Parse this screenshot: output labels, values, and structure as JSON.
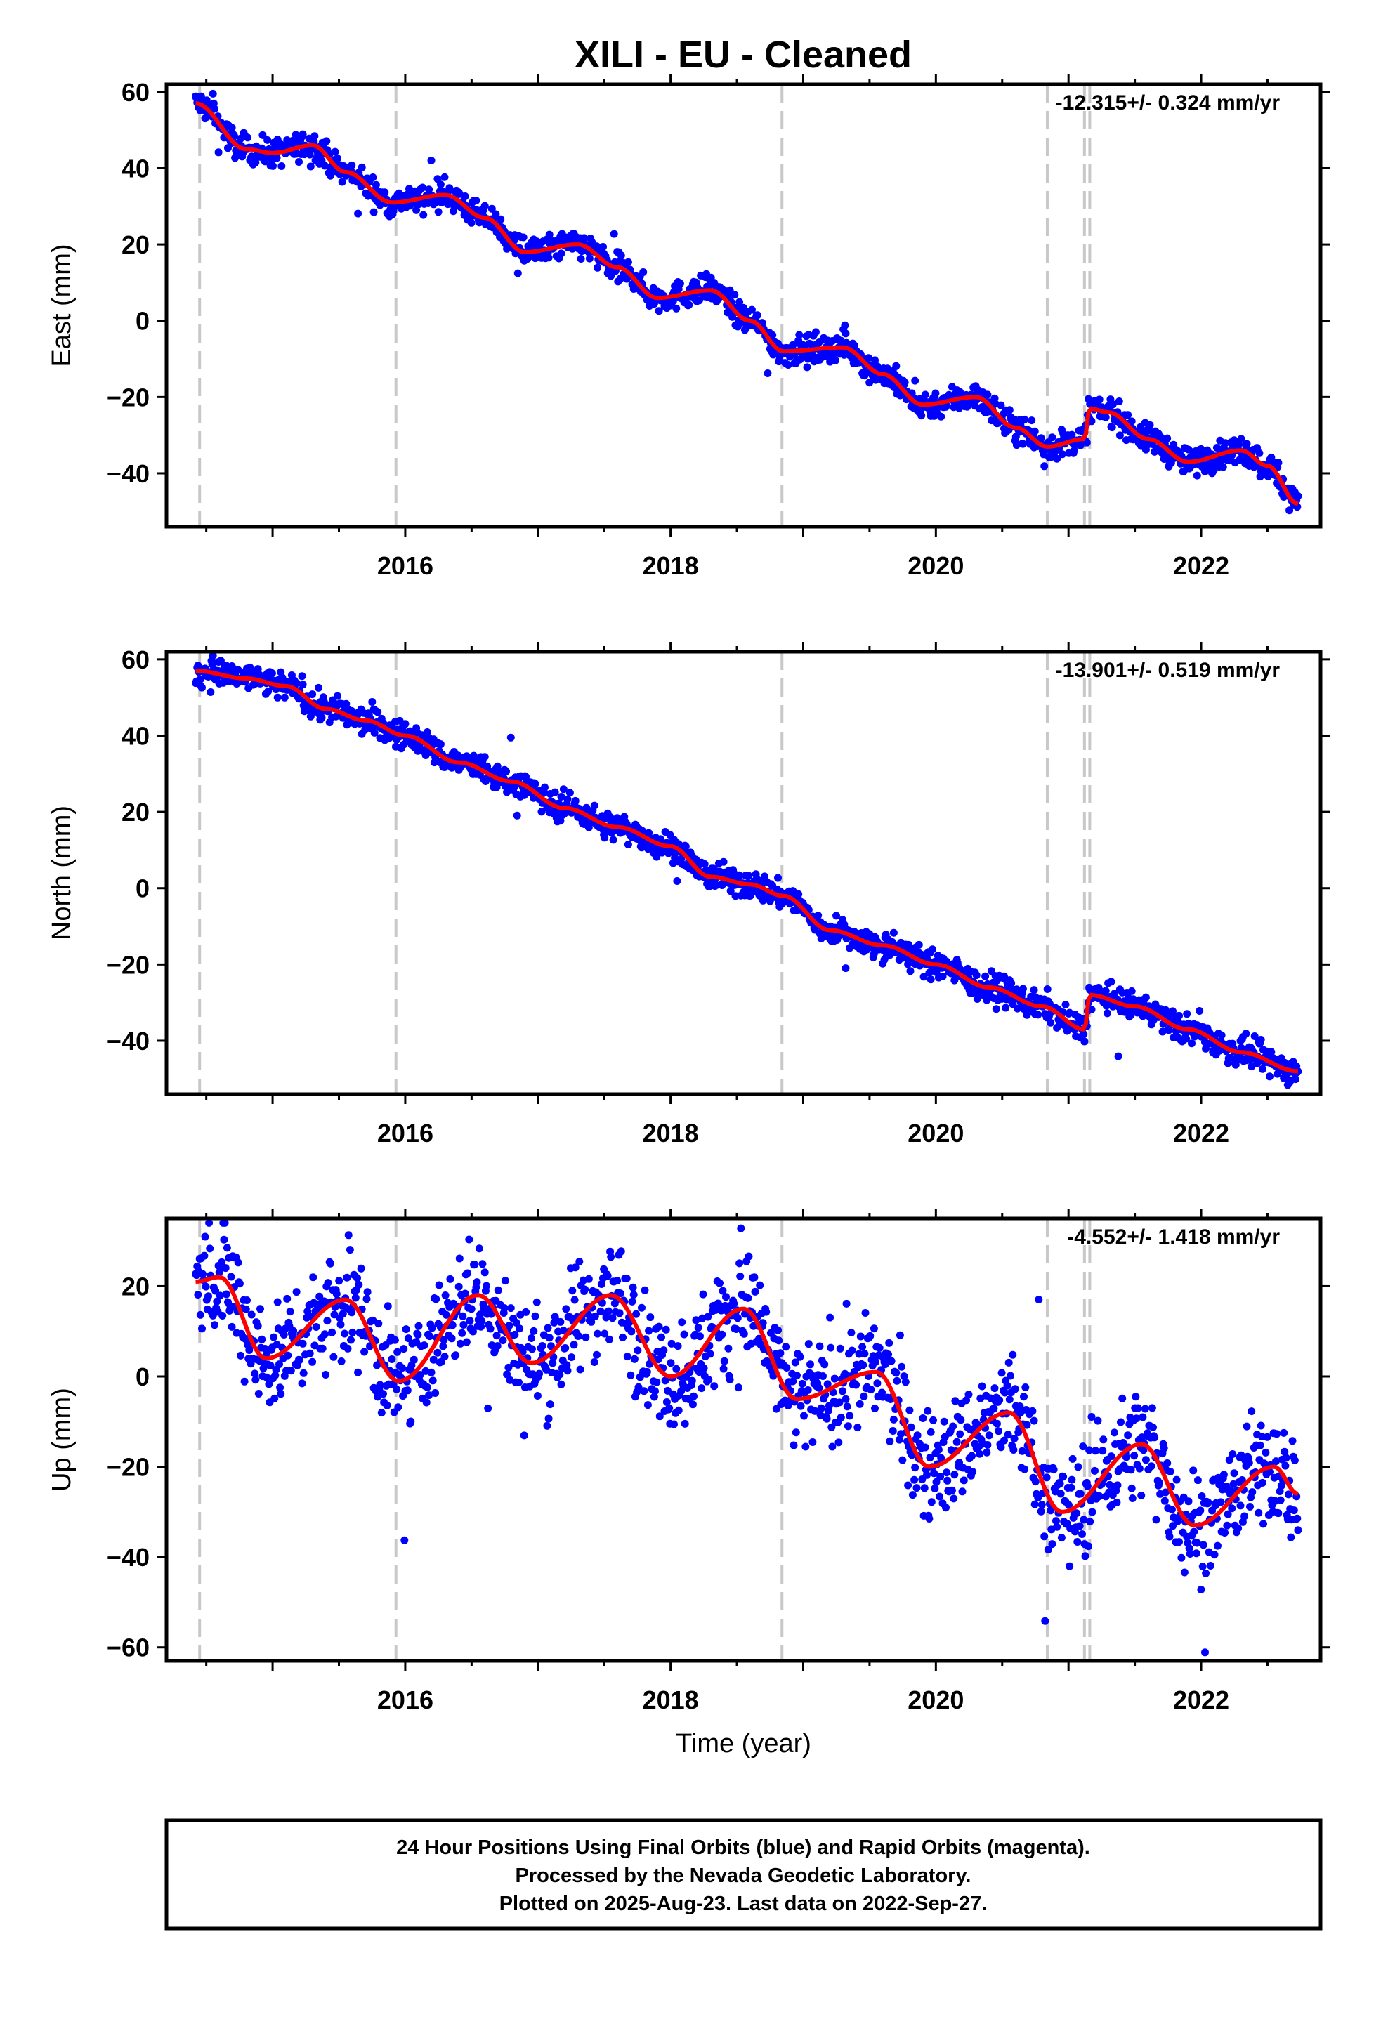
{
  "title": "XILI  - EU - Cleaned",
  "footer": {
    "line1": "24 Hour Positions Using Final Orbits (blue) and Rapid Orbits (magenta).",
    "line2": "Processed by the Nevada Geodetic Laboratory.",
    "line3": "Plotted on 2025-Aug-23. Last data on 2022-Sep-27."
  },
  "colors": {
    "points": "#0000ff",
    "fit": "#ff0000",
    "offsets": "#c8c8c8",
    "frame": "#000000"
  },
  "chart_data": [
    {
      "type": "scatter",
      "component": "east",
      "ylabel": "East (mm)",
      "xlabel": "",
      "rate_text": "-12.315+/- 0.324 mm/yr",
      "xlim": [
        2014.2,
        2022.9
      ],
      "ylim": [
        -54,
        62
      ],
      "xticks": [
        2016,
        2018,
        2020,
        2022
      ],
      "yticks": [
        -40,
        -20,
        0,
        20,
        40,
        60
      ],
      "offsets": [
        2014.45,
        2015.93,
        2018.84,
        2020.84,
        2021.12,
        2021.16
      ],
      "grid": false,
      "trend": {
        "x": [
          2014.42,
          2014.8,
          2015.0,
          2015.3,
          2015.55,
          2015.9,
          2016.3,
          2016.6,
          2016.9,
          2017.3,
          2017.6,
          2017.9,
          2018.3,
          2018.6,
          2018.85,
          2019.3,
          2019.6,
          2019.9,
          2020.3,
          2020.6,
          2020.84,
          2021.12,
          2021.16,
          2021.3,
          2021.6,
          2021.9,
          2022.3,
          2022.5,
          2022.73
        ],
        "y": [
          57,
          45,
          44,
          46,
          39,
          31,
          33,
          27,
          18,
          20,
          14,
          6,
          8,
          0,
          -8,
          -7,
          -14,
          -22,
          -20,
          -28,
          -33,
          -31,
          -23,
          -24,
          -31,
          -37,
          -34,
          -38,
          -48
        ]
      },
      "noise": 1.8
    },
    {
      "type": "scatter",
      "component": "north",
      "ylabel": "North (mm)",
      "xlabel": "",
      "rate_text": "-13.901+/- 0.519 mm/yr",
      "xlim": [
        2014.2,
        2022.9
      ],
      "ylim": [
        -54,
        62
      ],
      "xticks": [
        2016,
        2018,
        2020,
        2022
      ],
      "yticks": [
        -40,
        -20,
        0,
        20,
        40,
        60
      ],
      "offsets": [
        2014.45,
        2015.93,
        2018.84,
        2020.84,
        2021.12,
        2021.16
      ],
      "grid": false,
      "trend": {
        "x": [
          2014.42,
          2014.8,
          2015.1,
          2015.4,
          2015.7,
          2016.0,
          2016.4,
          2016.8,
          2017.2,
          2017.6,
          2018.0,
          2018.3,
          2018.6,
          2018.85,
          2019.2,
          2019.6,
          2020.0,
          2020.4,
          2020.8,
          2021.12,
          2021.16,
          2021.5,
          2021.9,
          2022.3,
          2022.73
        ],
        "y": [
          57,
          55,
          53,
          47,
          44,
          40,
          33,
          28,
          21,
          16,
          11,
          3,
          1,
          -2,
          -11,
          -15,
          -20,
          -26,
          -31,
          -37,
          -28,
          -31,
          -37,
          -43,
          -48
        ]
      },
      "noise": 1.8
    },
    {
      "type": "scatter",
      "component": "up",
      "ylabel": "Up (mm)",
      "xlabel": "Time (year)",
      "rate_text": "-4.552+/- 1.418 mm/yr",
      "xlim": [
        2014.2,
        2022.9
      ],
      "ylim": [
        -63,
        35
      ],
      "xticks": [
        2016,
        2018,
        2020,
        2022
      ],
      "yticks": [
        -60,
        -40,
        -20,
        0,
        20
      ],
      "offsets": [
        2014.45,
        2015.93,
        2018.84,
        2020.84,
        2021.12,
        2021.16
      ],
      "grid": false,
      "trend": {
        "x": [
          2014.42,
          2014.6,
          2014.95,
          2015.55,
          2015.95,
          2016.55,
          2016.95,
          2017.55,
          2018.0,
          2018.55,
          2018.95,
          2019.55,
          2019.95,
          2020.55,
          2020.95,
          2021.55,
          2021.95,
          2022.55,
          2022.73
        ],
        "y": [
          21,
          22,
          4,
          17,
          -1,
          18,
          3,
          18,
          0,
          15,
          -5,
          1,
          -20,
          -8,
          -30,
          -15,
          -33,
          -20,
          -26
        ]
      },
      "noise": 6
    }
  ]
}
